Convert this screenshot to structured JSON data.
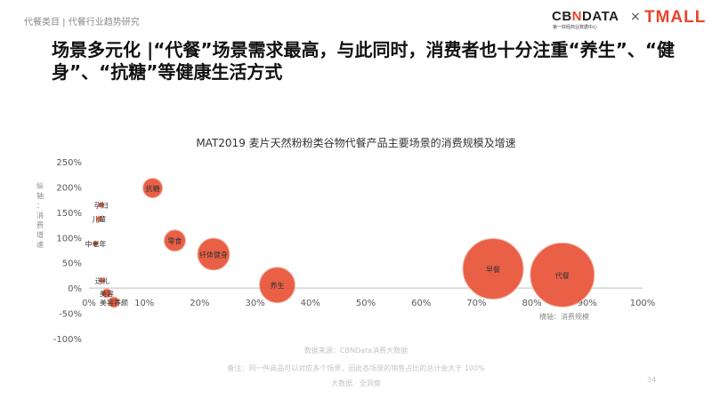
{
  "breadcrumb": "代餐类目 | 代餐行业趋势研究",
  "logos": {
    "cbn_prefix": "CB",
    "cbn_n": "N",
    "cbn_suffix": "DATA",
    "cbn_sub": "第一财经商业数据中心",
    "separator": "×",
    "tmall": "TMALL"
  },
  "headline": "场景多元化 |“代餐”场景需求最高，与此同时，消费者也十分注重“养生”、“健身”、“抗糖”等健康生活方式",
  "footer": {
    "source": "数据来源：CBNData消费大数据",
    "note": "备注：同一件商品可以对应多个场景，因此各场景的销售占比的总计会大于 100%",
    "scope": "大数据 · 全洞察",
    "page": "34"
  },
  "colors": {
    "bubble": "#e8583d",
    "bubble_stroke": "#f4b3a3",
    "axis": "#bfbfbf"
  },
  "chart_data": {
    "type": "scatter",
    "title": "MAT2019 麦片天然粉粉类谷物代餐产品主要场景的消费规模及增速",
    "xlabel": "横轴：消费规模",
    "ylabel": "纵轴：消费增速",
    "xlim": [
      0,
      100
    ],
    "ylim": [
      -100,
      250
    ],
    "x_ticks": [
      "0%",
      "10%",
      "20%",
      "30%",
      "40%",
      "50%",
      "60%",
      "70%",
      "80%",
      "90%",
      "100%"
    ],
    "y_ticks": [
      "250%",
      "200%",
      "150%",
      "100%",
      "50%",
      "0%",
      "-50%",
      "-100%"
    ],
    "grid": false,
    "points": [
      {
        "label": "抗糖",
        "x": 11.5,
        "y": 198,
        "size": 11
      },
      {
        "label": "孕妇",
        "x": 2.2,
        "y": 165,
        "size": 3
      },
      {
        "label": "儿童",
        "x": 1.8,
        "y": 137,
        "size": 3
      },
      {
        "label": "零食",
        "x": 15.5,
        "y": 94,
        "size": 12
      },
      {
        "label": "中老年",
        "x": 1.2,
        "y": 88,
        "size": 3
      },
      {
        "label": "纤体健身",
        "x": 22.5,
        "y": 67,
        "size": 18
      },
      {
        "label": "送礼",
        "x": 2.4,
        "y": 15,
        "size": 3
      },
      {
        "label": "养生",
        "x": 34,
        "y": 6,
        "size": 20
      },
      {
        "label": "早餐",
        "x": 73,
        "y": 38,
        "size": 34
      },
      {
        "label": "代餐",
        "x": 85.5,
        "y": 26,
        "size": 36
      },
      {
        "label": "美容",
        "x": 3.2,
        "y": -10,
        "size": 5
      },
      {
        "label": "美容养颜",
        "x": 4.5,
        "y": -28,
        "size": 6
      }
    ]
  }
}
